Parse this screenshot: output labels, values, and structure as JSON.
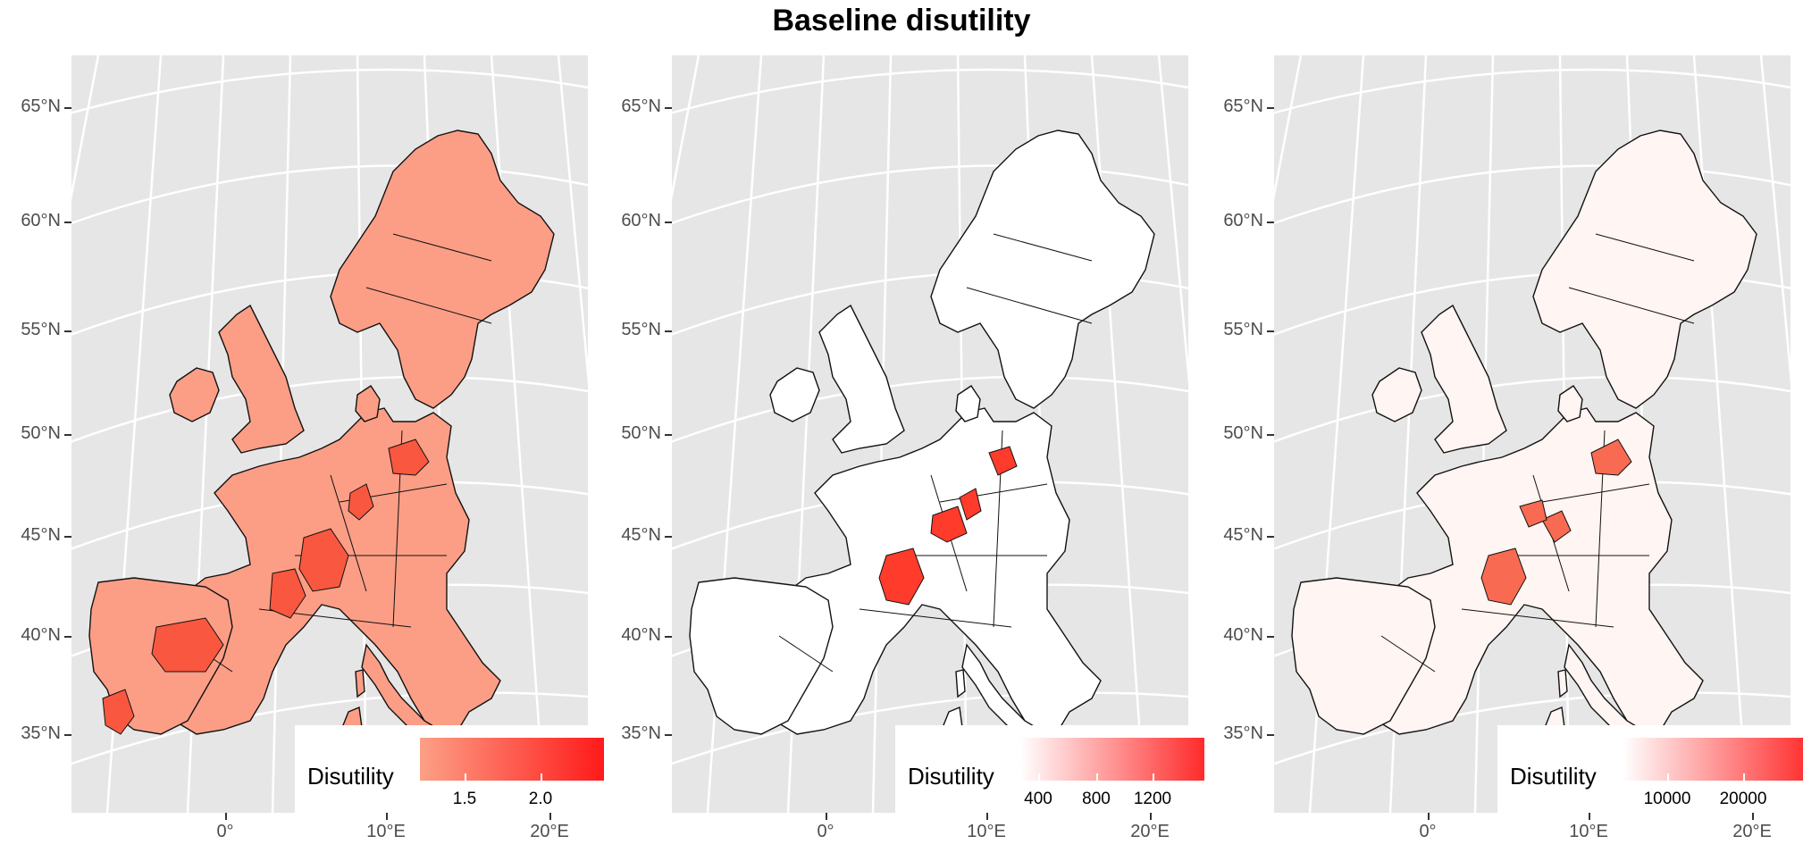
{
  "title": "Baseline disutility",
  "lat_labels": [
    "65°N",
    "60°N",
    "55°N",
    "50°N",
    "45°N",
    "40°N",
    "35°N"
  ],
  "lon_labels": [
    "0°",
    "10°E",
    "20°E"
  ],
  "panels": [
    {
      "id": "left",
      "legend_title": "Disutility",
      "legend_labels": [
        "1.5",
        "2.0"
      ],
      "low_color": "#fca086",
      "high_color": "#ff1a1a",
      "land_color": "#fc9e86",
      "hot_color": "#f9573f"
    },
    {
      "id": "middle",
      "legend_title": "Disutility",
      "legend_labels": [
        "400",
        "800",
        "1200"
      ],
      "low_color": "#ffffff",
      "high_color": "#ff2a2a",
      "land_color": "#ffffff",
      "hot_color": "#ff3b2b"
    },
    {
      "id": "right",
      "legend_title": "Disutility",
      "legend_labels": [
        "10000",
        "20000"
      ],
      "low_color": "#ffffff",
      "high_color": "#ff3030",
      "land_color": "#fff5f2",
      "hot_color": "#f86a52"
    }
  ]
}
